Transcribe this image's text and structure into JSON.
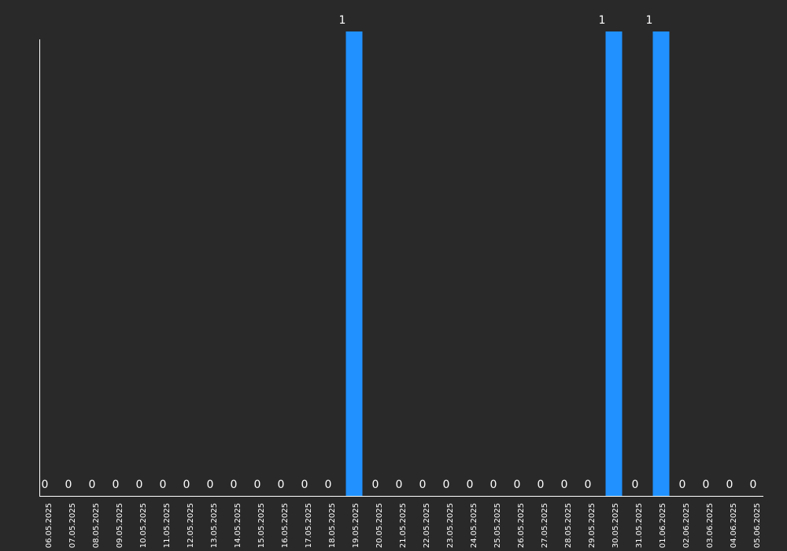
{
  "chart_data": {
    "type": "bar",
    "categories": [
      "06.05.2025",
      "07.05.2025",
      "08.05.2025",
      "09.05.2025",
      "10.05.2025",
      "11.05.2025",
      "12.05.2025",
      "13.05.2025",
      "14.05.2025",
      "15.05.2025",
      "16.05.2025",
      "17.05.2025",
      "18.05.2025",
      "19.05.2025",
      "20.05.2025",
      "21.05.2025",
      "22.05.2025",
      "23.05.2025",
      "24.05.2025",
      "25.05.2025",
      "26.05.2025",
      "27.05.2025",
      "28.05.2025",
      "29.05.2025",
      "30.05.2025",
      "31.05.2025",
      "01.06.2025",
      "02.06.2025",
      "03.06.2025",
      "04.06.2025",
      "05.06.2025"
    ],
    "values": [
      0,
      0,
      0,
      0,
      0,
      0,
      0,
      0,
      0,
      0,
      0,
      0,
      0,
      1,
      0,
      0,
      0,
      0,
      0,
      0,
      0,
      0,
      0,
      0,
      1,
      0,
      1,
      0,
      0,
      0,
      0
    ],
    "data_labels": [
      "0",
      "0",
      "0",
      "0",
      "0",
      "0",
      "0",
      "0",
      "0",
      "0",
      "0",
      "0",
      "0",
      "1",
      "0",
      "0",
      "0",
      "0",
      "0",
      "0",
      "0",
      "0",
      "0",
      "0",
      "1",
      "0",
      "1",
      "0",
      "0",
      "0",
      "0"
    ],
    "ylim": [
      0,
      1
    ],
    "grid": false,
    "legend": "none",
    "bar_color": "#2091ff",
    "axis_color": "#ffffff",
    "text_color": "#ffffff",
    "background": "#292929"
  }
}
